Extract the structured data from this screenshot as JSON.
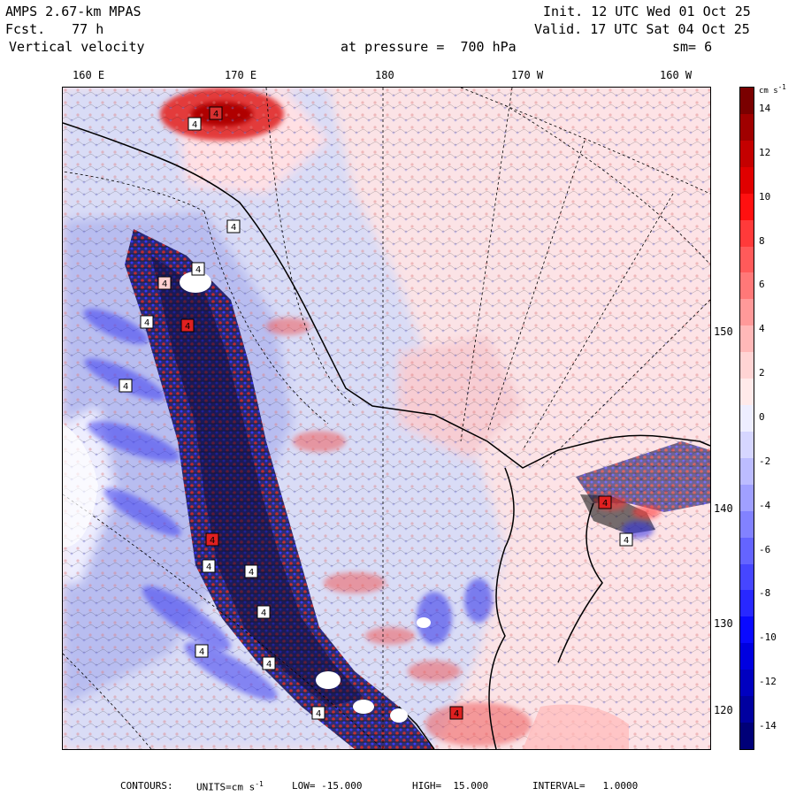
{
  "header": {
    "model": "AMPS 2.67-km MPAS",
    "fcst_label": "Fcst.",
    "fcst_value": "77 h",
    "variable": "Vertical velocity",
    "init": "Init. 12 UTC Wed 01 Oct 25",
    "valid": "Valid. 17 UTC Sat 04 Oct 25",
    "level": "at pressure =  700 hPa",
    "smooth": "sm= 6"
  },
  "longitude_labels": [
    "160 E",
    "170 E",
    "180",
    "170 W",
    "160 W"
  ],
  "latitude_labels": [
    "150 W",
    "140 W",
    "130 W",
    "120 W"
  ],
  "colorbar": {
    "units": "cm s",
    "units_exp": "-1",
    "labels": [
      "14",
      "12",
      "10",
      "8",
      "6",
      "4",
      "2",
      "0",
      "-2",
      "-4",
      "-6",
      "-8",
      "-10",
      "-12",
      "-14"
    ],
    "colors": [
      "#7a0000",
      "#a00000",
      "#c40000",
      "#e00000",
      "#ff1010",
      "#ff3a3a",
      "#ff5a5a",
      "#ff7878",
      "#ff9999",
      "#ffb8b8",
      "#ffd4d4",
      "#ffeaea",
      "#eeeeff",
      "#d6d6ff",
      "#bcbcff",
      "#a0a0ff",
      "#8282ff",
      "#6464ff",
      "#4646ff",
      "#2828ff",
      "#0a0aff",
      "#0000e0",
      "#0000c0",
      "#0000a0",
      "#000078"
    ]
  },
  "contour_labels": [
    "4",
    "4",
    "4",
    "4",
    "4",
    "4",
    "4",
    "4",
    "4",
    "4",
    "4",
    "4",
    "4",
    "4",
    "4",
    "4",
    "4",
    "4"
  ],
  "footer": {
    "contours": "CONTOURS:",
    "units": "UNITS=cm s",
    "units_exp": "-1",
    "low": "LOW= -15.000",
    "high": "HIGH=  15.000",
    "interval": "INTERVAL=   1.0000"
  }
}
